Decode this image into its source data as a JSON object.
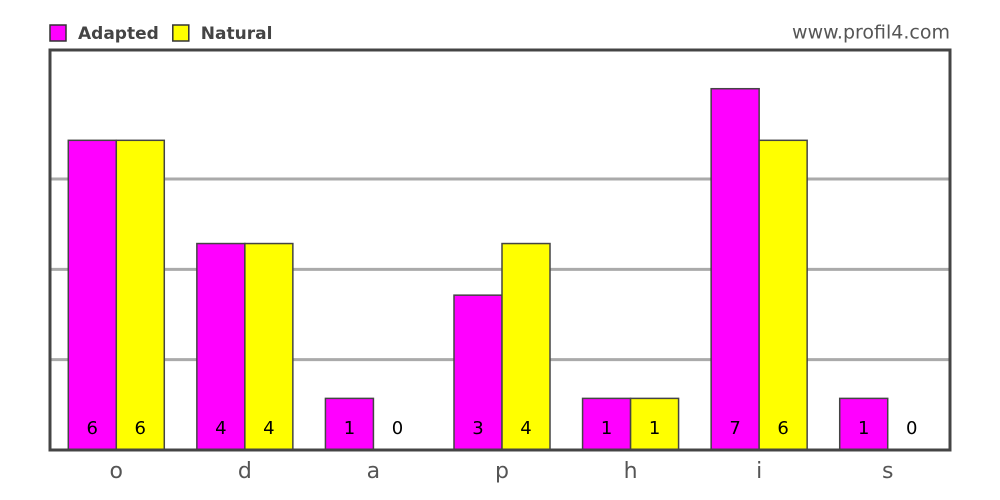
{
  "chart_data": {
    "type": "bar",
    "watermark": "www.profil4.com",
    "categories": [
      "o",
      "d",
      "a",
      "p",
      "h",
      "i",
      "s"
    ],
    "series": [
      {
        "name": "Adapted",
        "color": "#ff00ff",
        "values": [
          6,
          4,
          1,
          3,
          1,
          7,
          1
        ]
      },
      {
        "name": "Natural",
        "color": "#ffff00",
        "values": [
          6,
          4,
          0,
          4,
          1,
          6,
          0
        ]
      }
    ],
    "ylim": [
      0,
      7.75
    ],
    "yticks": [
      1.75,
      3.5,
      5.25
    ],
    "grid": true
  }
}
